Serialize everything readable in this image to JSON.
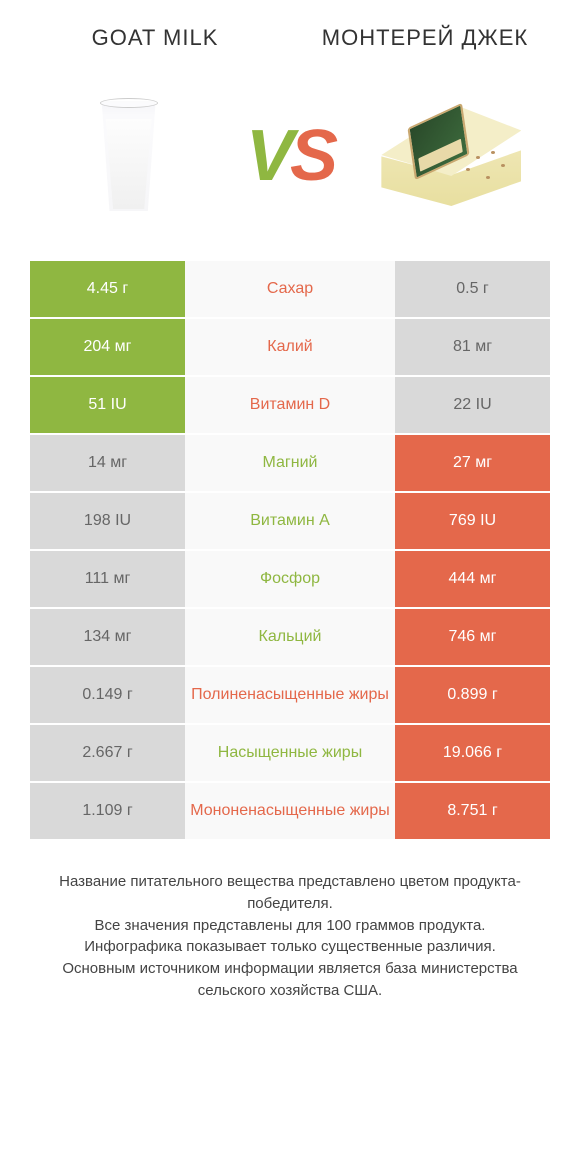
{
  "header": {
    "left_title": "GOAT MILK",
    "right_title": "МОНТЕРЕЙ ДЖЕК",
    "vs_text": "VS"
  },
  "colors": {
    "left": "#8fb741",
    "right": "#e4684b",
    "left_dim": "#d9d9d9",
    "right_dim": "#d9d9d9",
    "mid_bg": "#f9f9f9"
  },
  "rows": [
    {
      "left": "4.45 г",
      "label": "Сахар",
      "right": "0.5 г",
      "winner": "left",
      "label_color": "#e4684b"
    },
    {
      "left": "204 мг",
      "label": "Калий",
      "right": "81 мг",
      "winner": "left",
      "label_color": "#e4684b"
    },
    {
      "left": "51 IU",
      "label": "Витамин D",
      "right": "22 IU",
      "winner": "left",
      "label_color": "#e4684b"
    },
    {
      "left": "14 мг",
      "label": "Магний",
      "right": "27 мг",
      "winner": "right",
      "label_color": "#8fb741"
    },
    {
      "left": "198 IU",
      "label": "Витамин A",
      "right": "769 IU",
      "winner": "right",
      "label_color": "#8fb741"
    },
    {
      "left": "111 мг",
      "label": "Фосфор",
      "right": "444 мг",
      "winner": "right",
      "label_color": "#8fb741"
    },
    {
      "left": "134 мг",
      "label": "Кальций",
      "right": "746 мг",
      "winner": "right",
      "label_color": "#8fb741"
    },
    {
      "left": "0.149 г",
      "label": "Полиненасыщенные жиры",
      "right": "0.899 г",
      "winner": "right",
      "label_color": "#e4684b"
    },
    {
      "left": "2.667 г",
      "label": "Насыщенные жиры",
      "right": "19.066 г",
      "winner": "right",
      "label_color": "#8fb741"
    },
    {
      "left": "1.109 г",
      "label": "Мононенасыщенные жиры",
      "right": "8.751 г",
      "winner": "right",
      "label_color": "#e4684b"
    }
  ],
  "footer": {
    "line1": "Название питательного вещества представлено цветом продукта-победителя.",
    "line2": "Все значения представлены для 100 граммов продукта.",
    "line3": "Инфографика показывает только существенные различия.",
    "line4": "Основным источником информации является база министерства сельского хозяйства США."
  }
}
